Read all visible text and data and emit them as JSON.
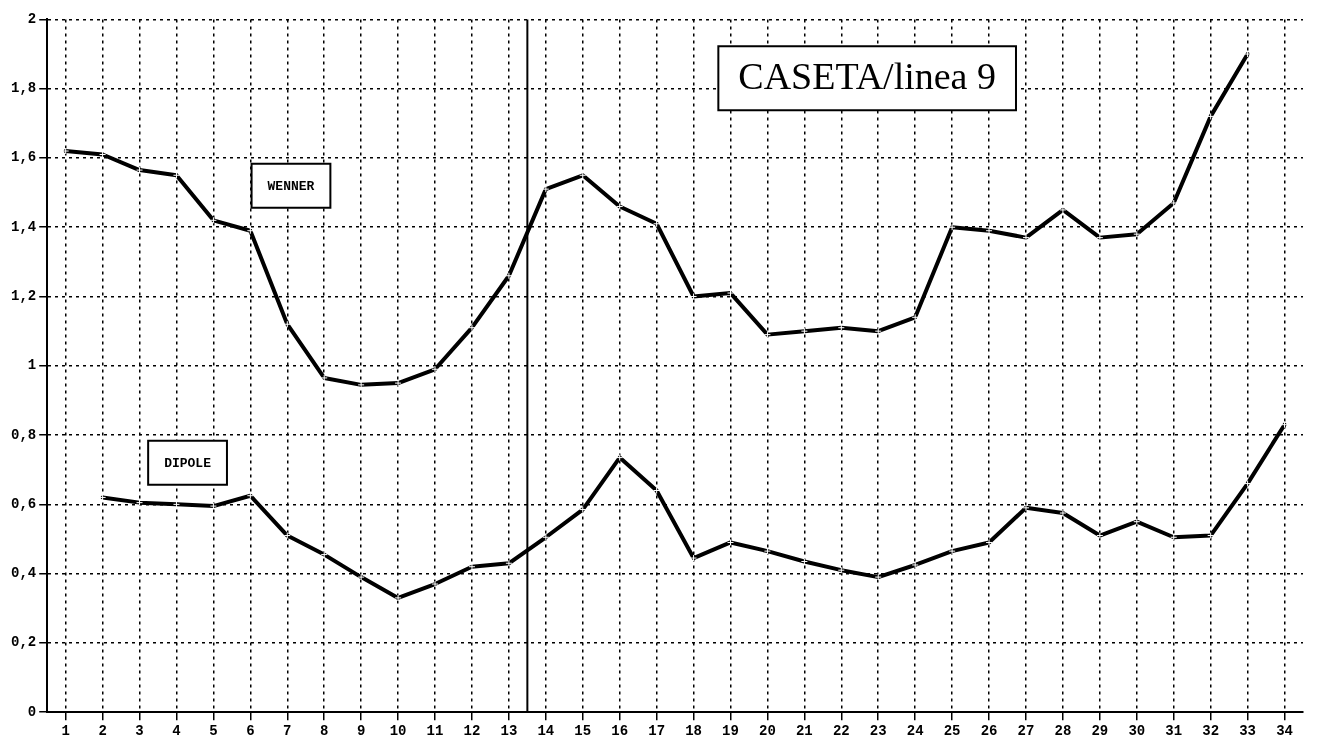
{
  "chart_data": {
    "type": "line",
    "title": "CASETA/linea 9",
    "x": [
      1,
      2,
      3,
      4,
      5,
      6,
      7,
      8,
      9,
      10,
      11,
      12,
      13,
      14,
      15,
      16,
      17,
      18,
      19,
      20,
      21,
      22,
      23,
      24,
      25,
      26,
      27,
      28,
      29,
      30,
      31,
      32,
      33,
      34
    ],
    "series": [
      {
        "name": "WENNER",
        "color": "#000000",
        "values": [
          1.62,
          1.61,
          1.565,
          1.55,
          1.42,
          1.39,
          1.12,
          0.965,
          0.945,
          0.95,
          0.99,
          1.11,
          1.26,
          1.51,
          1.55,
          1.46,
          1.41,
          1.2,
          1.21,
          1.09,
          1.1,
          1.11,
          1.1,
          1.14,
          1.4,
          1.39,
          1.37,
          1.45,
          1.37,
          1.38,
          1.47,
          1.72,
          1.9,
          null
        ]
      },
      {
        "name": "DIPOLE",
        "color": "#000000",
        "values": [
          null,
          0.62,
          0.605,
          0.6,
          0.595,
          0.625,
          0.51,
          0.455,
          0.39,
          0.33,
          0.37,
          0.42,
          0.43,
          0.505,
          0.585,
          0.735,
          0.64,
          0.445,
          0.49,
          0.465,
          0.435,
          0.41,
          0.39,
          0.425,
          0.465,
          0.49,
          0.59,
          0.575,
          0.51,
          0.55,
          0.505,
          0.51,
          0.66,
          0.83
        ]
      }
    ],
    "xlim": [
      0.5,
      34.5
    ],
    "xticks": [
      1,
      2,
      3,
      4,
      5,
      6,
      7,
      8,
      9,
      10,
      11,
      12,
      13,
      14,
      15,
      16,
      17,
      18,
      19,
      20,
      21,
      22,
      23,
      24,
      25,
      26,
      27,
      28,
      29,
      30,
      31,
      32,
      33,
      34
    ],
    "ylim": [
      0,
      2
    ],
    "yticks": [
      {
        "value": 0,
        "label": "0"
      },
      {
        "value": 0.2,
        "label": "0,2"
      },
      {
        "value": 0.4,
        "label": "0,4"
      },
      {
        "value": 0.6,
        "label": "0,6"
      },
      {
        "value": 0.8,
        "label": "0,8"
      },
      {
        "value": 1,
        "label": "1"
      },
      {
        "value": 1.2,
        "label": "1,2"
      },
      {
        "value": 1.4,
        "label": "1,4"
      },
      {
        "value": 1.6,
        "label": "1,6"
      },
      {
        "value": 1.8,
        "label": "1,8"
      },
      {
        "value": 2,
        "label": "2"
      }
    ],
    "ref_lines": [
      {
        "axis": "x",
        "value": 13.5,
        "color": "#000000"
      }
    ],
    "grid": true,
    "marker": "cross",
    "line_style": "solid",
    "legend": false
  }
}
